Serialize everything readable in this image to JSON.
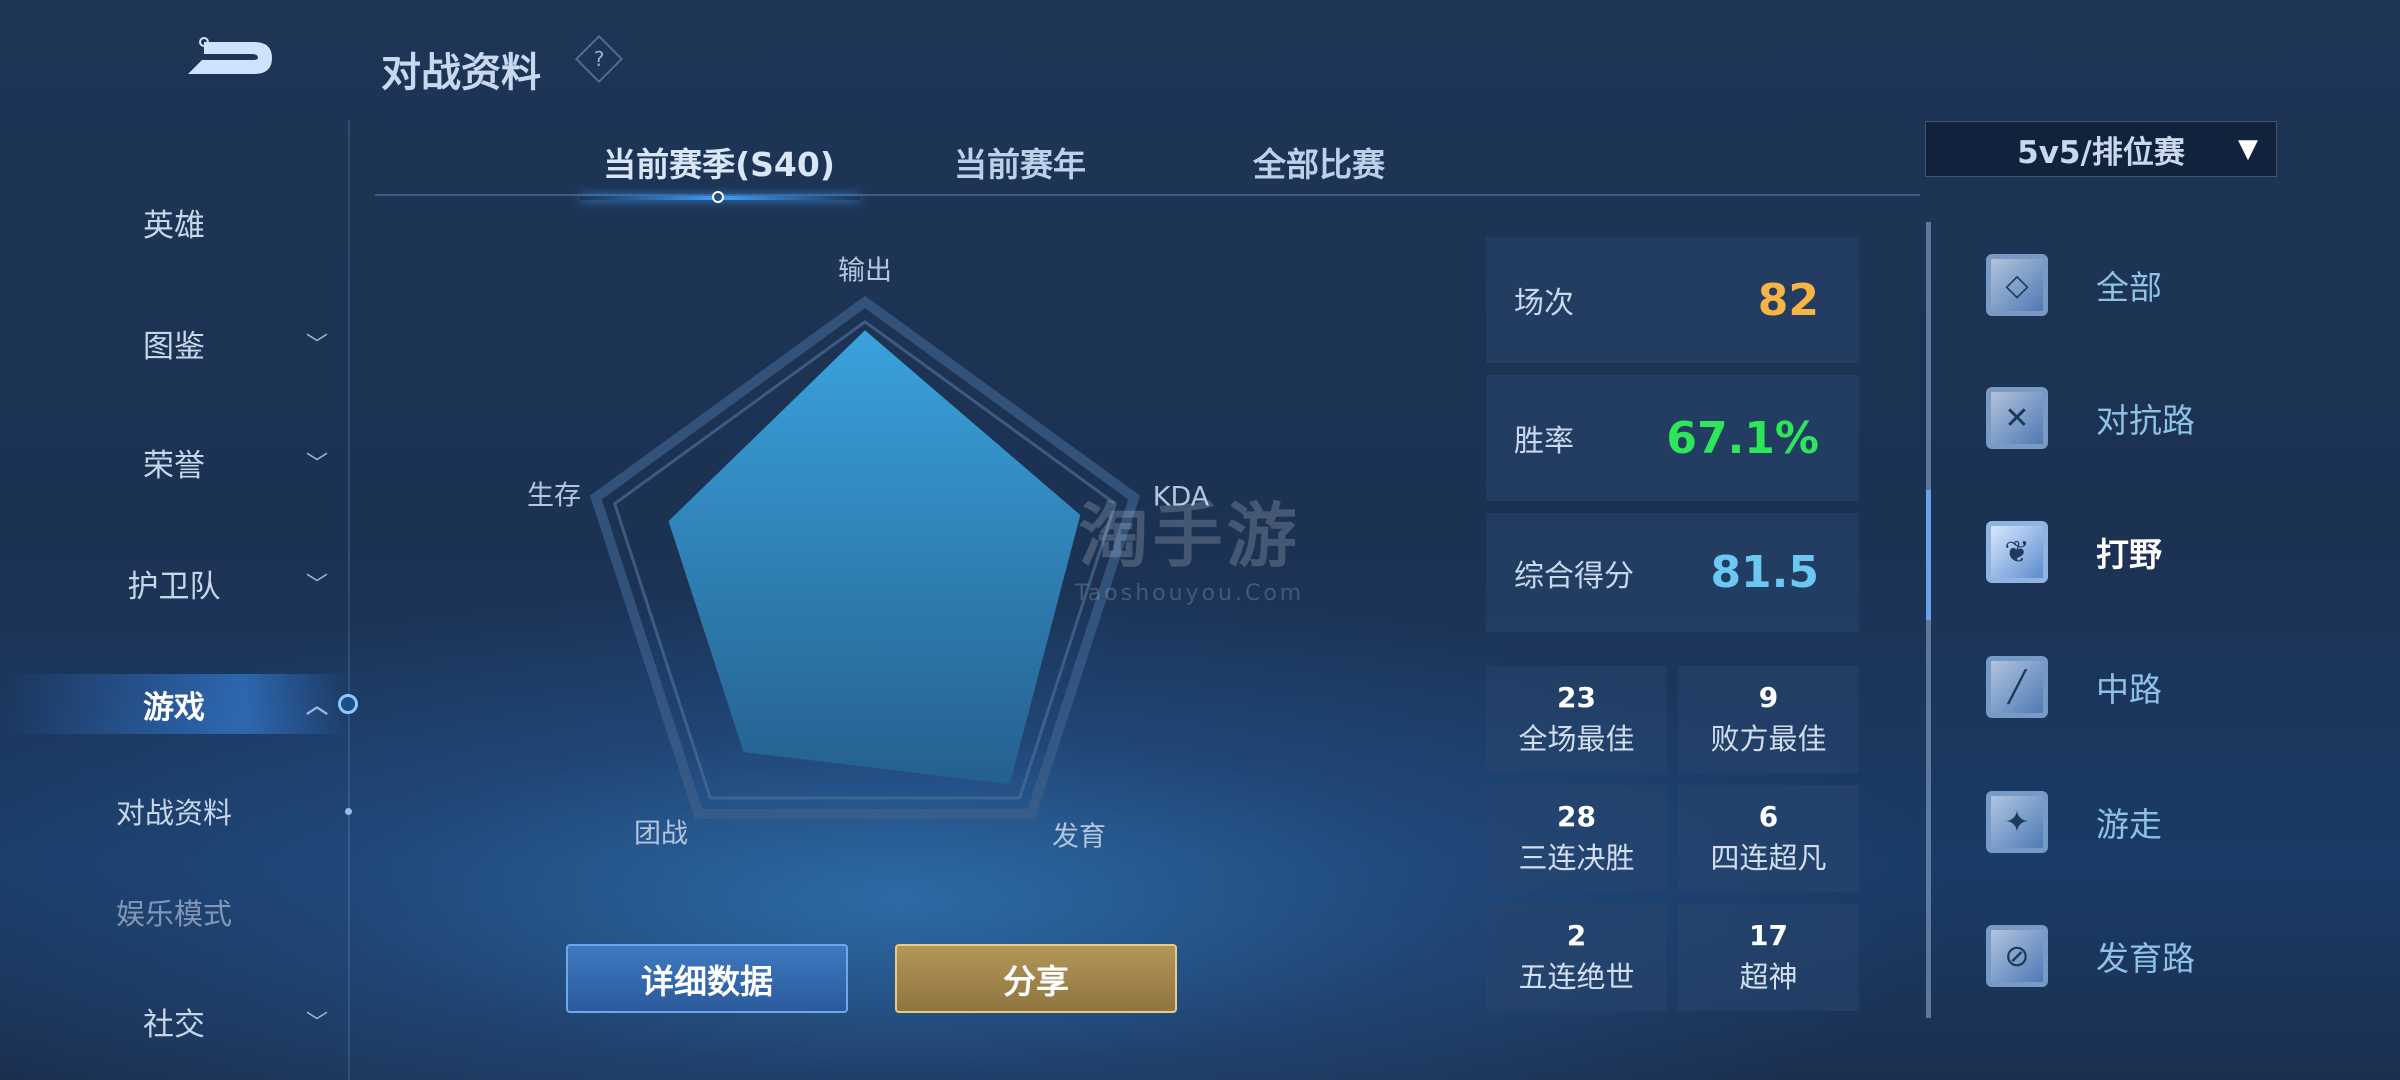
{
  "header": {
    "title": "对战资料",
    "help_icon": "question-diamond-icon",
    "back_icon": "back-arrow-icon"
  },
  "tabs": [
    {
      "label": "当前赛季(S40)",
      "active": true
    },
    {
      "label": "当前赛年"
    },
    {
      "label": "全部比赛"
    }
  ],
  "filter": {
    "value": "5v5/排位赛",
    "icon": "filter-icon"
  },
  "sidebar": {
    "items": [
      {
        "label": "英雄"
      },
      {
        "label": "图鉴",
        "chevron": "down"
      },
      {
        "label": "荣誉",
        "chevron": "down"
      },
      {
        "label": "护卫队",
        "chevron": "down"
      },
      {
        "label": "游戏",
        "chevron": "up",
        "active": true
      },
      {
        "label": "对战资料",
        "sub": true,
        "selected": true
      },
      {
        "label": "娱乐模式",
        "sub": true
      },
      {
        "label": "社交",
        "chevron": "down"
      }
    ]
  },
  "radar": {
    "labels": [
      "输出",
      "KDA",
      "发育",
      "团战",
      "生存"
    ],
    "values": [
      0.9,
      0.8,
      0.87,
      0.73,
      0.73
    ],
    "fill_color": "#2f8cc4"
  },
  "stats": {
    "matches": {
      "label": "场次",
      "value": "82",
      "color": "#f5b444"
    },
    "winrate": {
      "label": "胜率",
      "value": "67.1%",
      "color": "#2ee65a"
    },
    "score": {
      "label": "综合得分",
      "value": "81.5",
      "color": "#6cc8f2"
    }
  },
  "achievements": [
    {
      "count": "23",
      "label": "全场最佳"
    },
    {
      "count": "9",
      "label": "败方最佳"
    },
    {
      "count": "28",
      "label": "三连决胜"
    },
    {
      "count": "6",
      "label": "四连超凡"
    },
    {
      "count": "2",
      "label": "五连绝世"
    },
    {
      "count": "17",
      "label": "超神"
    }
  ],
  "roles": [
    {
      "label": "全部",
      "icon": "all-roles-icon"
    },
    {
      "label": "对抗路",
      "icon": "clash-lane-icon"
    },
    {
      "label": "打野",
      "icon": "jungle-icon",
      "active": true
    },
    {
      "label": "中路",
      "icon": "mid-lane-icon"
    },
    {
      "label": "游走",
      "icon": "roam-icon"
    },
    {
      "label": "发育路",
      "icon": "farm-lane-icon"
    }
  ],
  "buttons": {
    "details": "详细数据",
    "share": "分享"
  },
  "watermark": {
    "text": "淘手游",
    "sub": "Taoshouyou.Com"
  }
}
